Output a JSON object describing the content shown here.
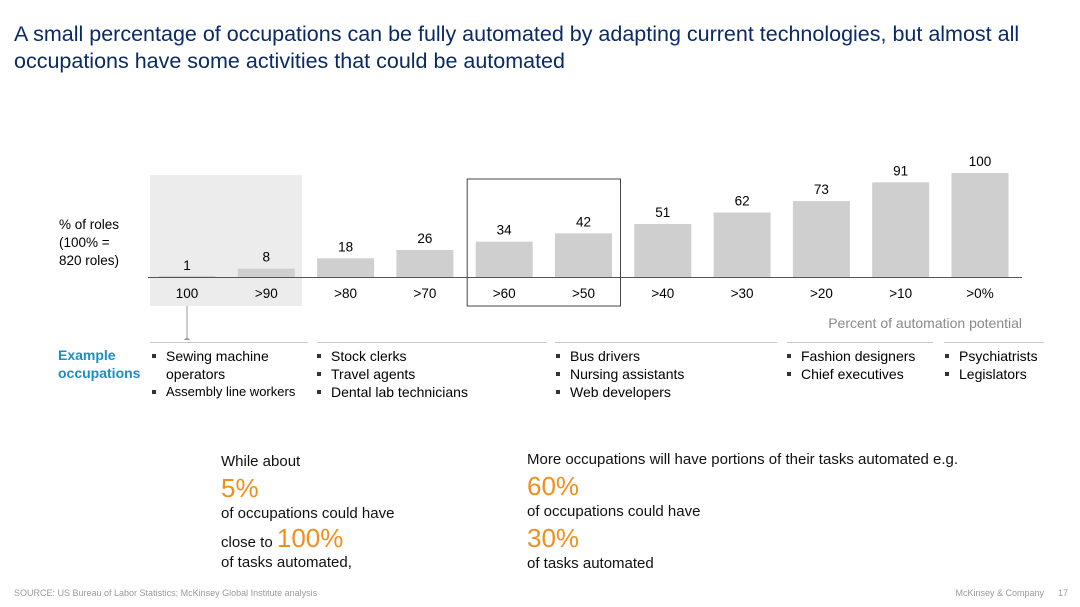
{
  "title": "A small percentage of occupations can be fully automated by adapting current technologies, but almost all occupations have some activities that could be automated",
  "ylabel_lines": [
    "% of roles",
    "(100% =",
    "820 roles)"
  ],
  "chart_data": {
    "type": "bar",
    "categories": [
      "100",
      ">90",
      ">80",
      ">70",
      ">60",
      ">50",
      ">40",
      ">30",
      ">20",
      ">10",
      ">0%"
    ],
    "values": [
      1,
      8,
      18,
      26,
      34,
      42,
      51,
      62,
      73,
      91,
      100
    ],
    "ylim": [
      0,
      100
    ],
    "ylabel": "% of roles (100% = 820 roles)",
    "xlabel": "Percent of automation potential",
    "bar_color": "#cfcfcf",
    "highlight_color": "#ececec"
  },
  "axis_note": "Percent of automation potential",
  "examples_label": [
    "Example",
    "occupations"
  ],
  "occupation_groups": [
    {
      "items": [
        "Sewing machine",
        "operators",
        "Assembly line workers"
      ]
    },
    {
      "items": [
        "Stock clerks",
        "Travel agents",
        "Dental lab technicians"
      ]
    },
    {
      "items": [
        "Bus drivers",
        "Nursing assistants",
        "Web developers"
      ]
    },
    {
      "items": [
        "Fashion designers",
        "Chief executives"
      ]
    },
    {
      "items": [
        "Psychiatrists",
        "Legislators"
      ]
    }
  ],
  "fact_left": {
    "intro": "While about",
    "pct1": "5%",
    "line2": "of occupations could have",
    "line3_prefix": "close to",
    "pct2": "100%",
    "line4": "of tasks automated,"
  },
  "fact_right": {
    "intro": "More occupations will have portions of their tasks automated e.g.",
    "pct1": "60%",
    "line2": "of occupations could have",
    "pct2": "30%",
    "line4": "of tasks automated"
  },
  "footer": {
    "source": "SOURCE: US Bureau of Labor Statistics; McKinsey Global Institute analysis",
    "brand": "McKinsey & Company",
    "page": "17"
  }
}
